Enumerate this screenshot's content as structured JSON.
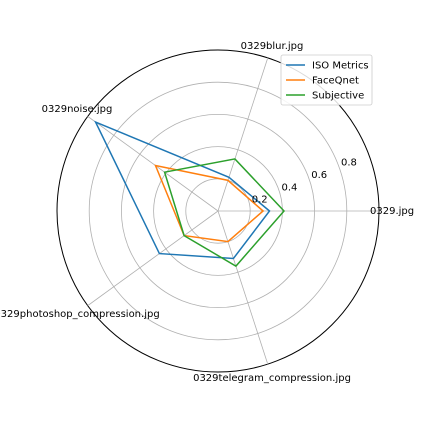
{
  "chart_data": {
    "type": "radar",
    "categories": [
      "0329.jpg",
      "0329blur.jpg",
      "0329noise.jpg",
      "0329photoshop_compression.jpg",
      "0329telegram_compression.jpg"
    ],
    "radial_ticks": [
      "0.2",
      "0.4",
      "0.6",
      "0.8"
    ],
    "radial_tick_values": [
      0.2,
      0.4,
      0.6,
      0.8
    ],
    "rlim": [
      0,
      1.0
    ],
    "grid": true,
    "legend_position": "top-right",
    "series": [
      {
        "name": "ISO Metrics",
        "color": "#1f77b4",
        "values": [
          0.32,
          0.22,
          0.94,
          0.45,
          0.31
        ]
      },
      {
        "name": "FaceQnet",
        "color": "#ff7f0e",
        "values": [
          0.28,
          0.2,
          0.48,
          0.26,
          0.2
        ]
      },
      {
        "name": "Subjective",
        "color": "#2ca02c",
        "values": [
          0.41,
          0.34,
          0.41,
          0.26,
          0.36
        ]
      }
    ]
  }
}
